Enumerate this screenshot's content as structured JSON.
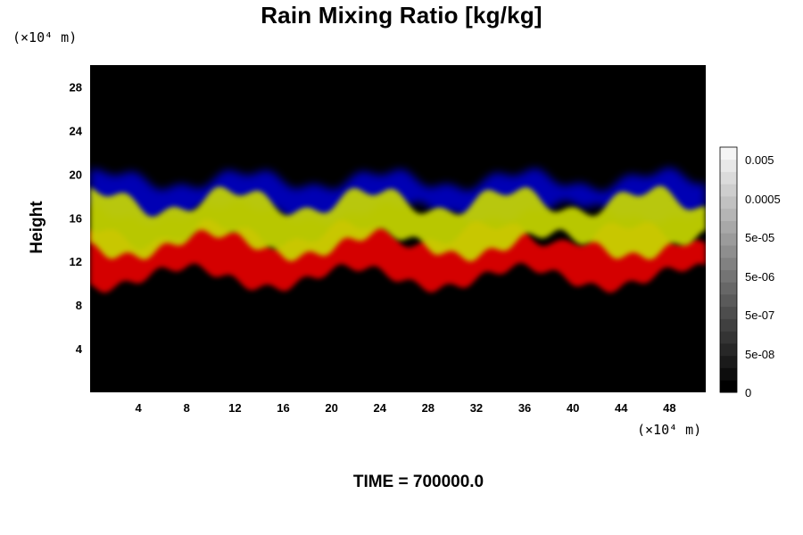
{
  "chart_data": {
    "type": "heatmap",
    "title": "Rain Mixing Ratio [kg/kg]",
    "ylabel": "Height",
    "y_unit": "(×10⁴ m)",
    "x_unit": "(×10⁴ m)",
    "xlim": [
      0,
      51
    ],
    "ylim": [
      0,
      30
    ],
    "x_ticks": [
      "4",
      "8",
      "12",
      "16",
      "20",
      "24",
      "28",
      "32",
      "36",
      "40",
      "44",
      "48"
    ],
    "y_ticks": [
      "4",
      "8",
      "12",
      "16",
      "20",
      "24",
      "28"
    ],
    "colorbar": {
      "tick_labels": [
        "0.005",
        "0.0005",
        "5e-05",
        "5e-06",
        "5e-07",
        "5e-08",
        "0"
      ],
      "colors": [
        "#000000",
        "#ffffff"
      ]
    },
    "layers": [
      {
        "color": "#0000c8",
        "y_range": [
          16.5,
          19.5
        ],
        "description_color": "blue"
      },
      {
        "color": "#c8d800",
        "y_range": [
          13.5,
          17.5
        ],
        "description_color": "yellow-green"
      },
      {
        "color": "#e00000",
        "y_range": [
          10.5,
          14.5
        ],
        "description_color": "red"
      }
    ],
    "background": "#000000"
  },
  "footer": {
    "time_label": "TIME = 700000.0"
  }
}
